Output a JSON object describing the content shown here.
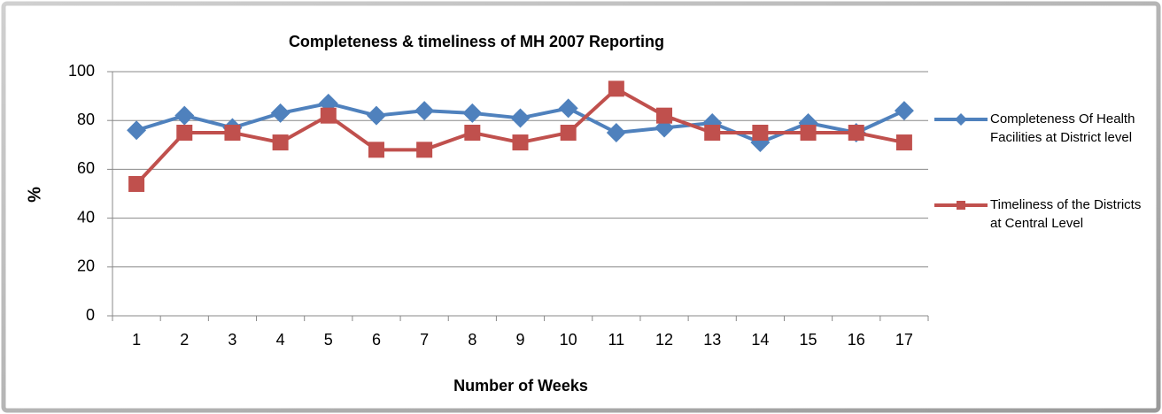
{
  "chart_data": {
    "type": "line",
    "title": "Completeness & timeliness of MH 2007 Reporting",
    "x_label": "Number of Weeks",
    "y_label": "%",
    "categories": [
      "1",
      "2",
      "3",
      "4",
      "5",
      "6",
      "7",
      "8",
      "9",
      "10",
      "11",
      "12",
      "13",
      "14",
      "15",
      "16",
      "17"
    ],
    "series": [
      {
        "name": "Completeness Of Health Facilities at District level",
        "color": "#4f81bd",
        "marker": "diamond",
        "values": [
          76,
          82,
          77,
          83,
          87,
          82,
          84,
          83,
          81,
          85,
          75,
          77,
          79,
          71,
          79,
          75,
          84
        ]
      },
      {
        "name": "Timeliness of the Districts at Central Level",
        "color": "#c0504d",
        "marker": "square",
        "values": [
          54,
          75,
          75,
          71,
          82,
          68,
          68,
          75,
          71,
          75,
          93,
          82,
          75,
          75,
          75,
          75,
          71
        ]
      }
    ],
    "ylim": [
      0,
      100
    ],
    "yticks": [
      0,
      20,
      40,
      60,
      80,
      100
    ],
    "grid": true,
    "legend": "right"
  }
}
